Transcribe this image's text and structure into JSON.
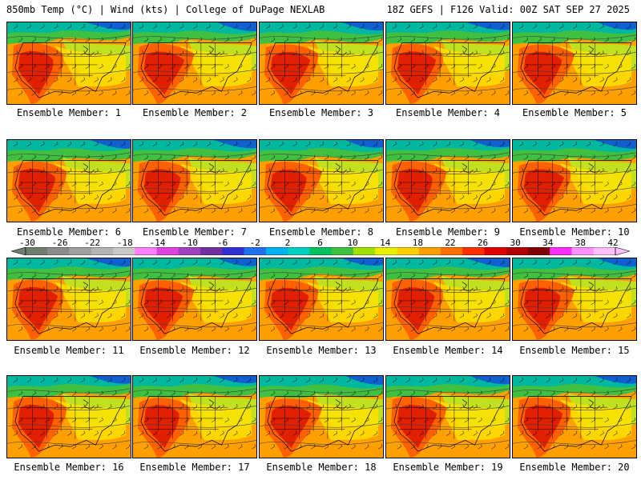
{
  "header": {
    "left_title": "850mb Temp (°C) | Wind (kts) | College of DuPage NEXLAB",
    "right_title": "18Z GEFS | F126 Valid: 00Z SAT SEP 27 2025"
  },
  "members": [
    "Ensemble Member: 1",
    "Ensemble Member: 2",
    "Ensemble Member: 3",
    "Ensemble Member: 4",
    "Ensemble Member: 5",
    "Ensemble Member: 6",
    "Ensemble Member: 7",
    "Ensemble Member: 8",
    "Ensemble Member: 9",
    "Ensemble Member: 10",
    "Ensemble Member: 11",
    "Ensemble Member: 12",
    "Ensemble Member: 13",
    "Ensemble Member: 14",
    "Ensemble Member: 15",
    "Ensemble Member: 16",
    "Ensemble Member: 17",
    "Ensemble Member: 18",
    "Ensemble Member: 19",
    "Ensemble Member: 20"
  ],
  "colorbar": {
    "ticks": [
      "-30",
      "-26",
      "-22",
      "-18",
      "-14",
      "-10",
      "-6",
      "-2",
      "2",
      "6",
      "10",
      "14",
      "18",
      "22",
      "26",
      "30",
      "34",
      "38",
      "42"
    ],
    "colors": [
      "#6e7f70",
      "#8c8c8c",
      "#a0a0a0",
      "#b4b4b4",
      "#c8c8c8",
      "#ff80ff",
      "#e040e0",
      "#a040c0",
      "#7030a0",
      "#3030d0",
      "#2070f0",
      "#00b0f0",
      "#00d0c0",
      "#00c060",
      "#40c040",
      "#a0e000",
      "#e8f000",
      "#ffd000",
      "#ffa000",
      "#ff7000",
      "#ff3000",
      "#e00000",
      "#b00000",
      "#800000",
      "#ff30ff",
      "#ff90ff",
      "#ffc0ff"
    ]
  },
  "map_colors": {
    "cold_top": "#1060d0",
    "teal": "#00b8a0",
    "green": "#40c040",
    "yellow_green": "#c0e020",
    "yellow": "#ffe000",
    "orange": "#ffa000",
    "red_orange": "#ff6000",
    "red": "#e02000"
  }
}
